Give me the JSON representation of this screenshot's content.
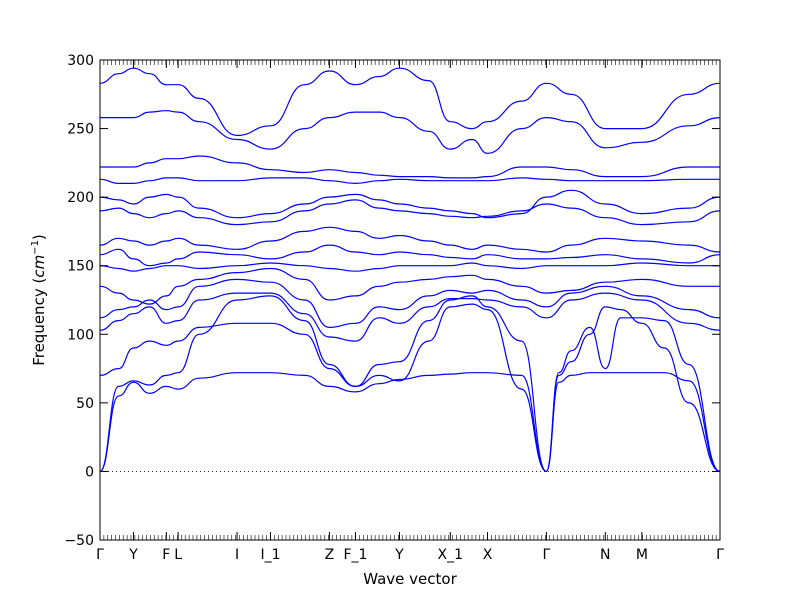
{
  "chart_data": {
    "type": "line",
    "title": "",
    "xlabel": "Wave vector",
    "ylabel": "Frequency",
    "ylabel_unit_math": "cm",
    "ylabel_unit_exponent": "−1",
    "ylim": [
      -50,
      300
    ],
    "yticks": [
      -50,
      0,
      50,
      100,
      150,
      200,
      250,
      300
    ],
    "ytick_labels": [
      "−50",
      "0",
      "50",
      "100",
      "150",
      "200",
      "250",
      "300"
    ],
    "xlim": [
      0,
      1
    ],
    "xticks": [
      {
        "label": "Γ",
        "x": 0.0
      },
      {
        "label": "Y",
        "x": 0.054
      },
      {
        "label": "F",
        "x": 0.107
      },
      {
        "label": "L",
        "x": 0.126
      },
      {
        "label": "I",
        "x": 0.221
      },
      {
        "label": "I_1",
        "x": 0.275
      },
      {
        "label": "Z",
        "x": 0.37
      },
      {
        "label": "F_1",
        "x": 0.412
      },
      {
        "label": "Y",
        "x": 0.483
      },
      {
        "label": "X_1",
        "x": 0.565
      },
      {
        "label": "X",
        "x": 0.625
      },
      {
        "label": "Γ",
        "x": 0.72
      },
      {
        "label": "N",
        "x": 0.815
      },
      {
        "label": "M",
        "x": 0.874
      },
      {
        "label": "Γ",
        "x": 1.0
      }
    ],
    "zero_line": {
      "y": 0,
      "style": "dotted"
    },
    "series_color": "#0000ff",
    "series": [
      {
        "x": [
          0,
          0.03,
          0.054,
          0.08,
          0.107,
          0.126,
          0.16,
          0.221,
          0.275,
          0.33,
          0.37,
          0.412,
          0.45,
          0.483,
          0.53,
          0.565,
          0.6,
          0.625,
          0.68,
          0.72
        ],
        "values": [
          0,
          55,
          65,
          57,
          62,
          60,
          68,
          72,
          72,
          70,
          62,
          58,
          64,
          67,
          70,
          71,
          72,
          72,
          70,
          0
        ]
      },
      {
        "x": [
          0,
          0.03,
          0.054,
          0.08,
          0.107,
          0.126,
          0.16,
          0.221,
          0.275,
          0.33,
          0.37,
          0.412,
          0.45,
          0.483,
          0.53,
          0.565,
          0.6,
          0.625,
          0.68,
          0.72
        ],
        "values": [
          0,
          62,
          66,
          63,
          70,
          72,
          100,
          125,
          128,
          110,
          78,
          62,
          70,
          66,
          95,
          120,
          122,
          118,
          60,
          0
        ]
      },
      {
        "x": [
          0,
          0.03,
          0.054,
          0.08,
          0.107,
          0.126,
          0.16,
          0.221,
          0.275,
          0.33,
          0.37,
          0.412,
          0.45,
          0.483,
          0.53,
          0.565,
          0.6,
          0.625,
          0.68,
          0.72
        ],
        "values": [
          70,
          75,
          90,
          95,
          92,
          95,
          105,
          108,
          108,
          100,
          75,
          62,
          78,
          80,
          110,
          125,
          128,
          120,
          95,
          0
        ]
      },
      {
        "x": [
          0.72,
          0.74,
          0.76,
          0.79,
          0.815,
          0.84,
          0.874,
          0.91,
          0.95,
          1.0
        ],
        "values": [
          0,
          70,
          80,
          100,
          120,
          118,
          108,
          90,
          50,
          0
        ]
      },
      {
        "x": [
          0.72,
          0.74,
          0.76,
          0.79,
          0.815,
          0.84,
          0.874,
          0.91,
          0.95,
          1.0
        ],
        "values": [
          0,
          65,
          70,
          72,
          72,
          72,
          72,
          72,
          66,
          0
        ]
      },
      {
        "x": [
          0.72,
          0.74,
          0.76,
          0.79,
          0.815,
          0.84,
          0.874,
          0.91,
          0.95,
          1.0
        ],
        "values": [
          0,
          72,
          88,
          105,
          75,
          112,
          112,
          110,
          78,
          0
        ]
      },
      {
        "x": [
          0,
          0.03,
          0.054,
          0.08,
          0.107,
          0.126,
          0.16,
          0.221,
          0.275,
          0.33,
          0.37,
          0.412,
          0.45,
          0.483,
          0.53,
          0.565,
          0.6,
          0.625,
          0.68,
          0.72,
          0.76,
          0.815,
          0.874,
          0.95,
          1.0
        ],
        "values": [
          103,
          110,
          115,
          120,
          108,
          110,
          125,
          130,
          130,
          115,
          98,
          95,
          112,
          108,
          120,
          126,
          126,
          125,
          120,
          112,
          125,
          130,
          125,
          108,
          103
        ]
      },
      {
        "x": [
          0,
          0.03,
          0.054,
          0.08,
          0.107,
          0.126,
          0.16,
          0.221,
          0.275,
          0.33,
          0.37,
          0.412,
          0.45,
          0.483,
          0.53,
          0.565,
          0.6,
          0.625,
          0.68,
          0.72,
          0.76,
          0.815,
          0.874,
          0.95,
          1.0
        ],
        "values": [
          112,
          118,
          120,
          125,
          118,
          120,
          135,
          140,
          138,
          125,
          105,
          108,
          120,
          118,
          128,
          132,
          130,
          132,
          125,
          120,
          130,
          135,
          128,
          118,
          112
        ]
      },
      {
        "x": [
          0,
          0.03,
          0.054,
          0.08,
          0.107,
          0.126,
          0.16,
          0.221,
          0.275,
          0.33,
          0.37,
          0.412,
          0.45,
          0.483,
          0.53,
          0.565,
          0.6,
          0.625,
          0.68,
          0.72,
          0.76,
          0.815,
          0.874,
          0.95,
          1.0
        ],
        "values": [
          135,
          130,
          125,
          122,
          128,
          135,
          140,
          145,
          148,
          140,
          125,
          128,
          135,
          138,
          140,
          142,
          143,
          140,
          135,
          130,
          132,
          138,
          140,
          135,
          135
        ]
      },
      {
        "x": [
          0,
          0.03,
          0.054,
          0.08,
          0.107,
          0.126,
          0.16,
          0.221,
          0.275,
          0.33,
          0.37,
          0.412,
          0.45,
          0.483,
          0.53,
          0.565,
          0.6,
          0.625,
          0.68,
          0.72,
          0.76,
          0.815,
          0.874,
          0.95,
          1.0
        ],
        "values": [
          150,
          148,
          146,
          148,
          150,
          150,
          148,
          150,
          152,
          150,
          148,
          146,
          148,
          150,
          150,
          150,
          152,
          150,
          148,
          150,
          150,
          150,
          152,
          150,
          150
        ]
      },
      {
        "x": [
          0,
          0.03,
          0.054,
          0.08,
          0.107,
          0.126,
          0.16,
          0.221,
          0.275,
          0.33,
          0.37,
          0.412,
          0.45,
          0.483,
          0.53,
          0.565,
          0.6,
          0.625,
          0.68,
          0.72,
          0.76,
          0.815,
          0.874,
          0.95,
          1.0
        ],
        "values": [
          158,
          162,
          155,
          150,
          152,
          155,
          160,
          158,
          155,
          160,
          165,
          160,
          158,
          160,
          158,
          156,
          155,
          158,
          155,
          155,
          156,
          158,
          155,
          152,
          158
        ]
      },
      {
        "x": [
          0,
          0.03,
          0.054,
          0.08,
          0.107,
          0.126,
          0.16,
          0.221,
          0.275,
          0.33,
          0.37,
          0.412,
          0.45,
          0.483,
          0.53,
          0.565,
          0.6,
          0.625,
          0.68,
          0.72,
          0.76,
          0.815,
          0.874,
          0.95,
          1.0
        ],
        "values": [
          165,
          170,
          168,
          165,
          168,
          170,
          165,
          162,
          168,
          175,
          178,
          175,
          170,
          172,
          168,
          165,
          162,
          165,
          162,
          160,
          165,
          170,
          168,
          165,
          160
        ]
      },
      {
        "x": [
          0,
          0.03,
          0.054,
          0.08,
          0.107,
          0.126,
          0.16,
          0.221,
          0.275,
          0.33,
          0.37,
          0.412,
          0.45,
          0.483,
          0.53,
          0.565,
          0.6,
          0.625,
          0.68,
          0.72,
          0.76,
          0.815,
          0.874,
          0.95,
          1.0
        ],
        "values": [
          190,
          192,
          188,
          185,
          188,
          190,
          185,
          180,
          182,
          190,
          195,
          198,
          192,
          190,
          188,
          186,
          185,
          186,
          190,
          195,
          192,
          185,
          180,
          182,
          190
        ]
      },
      {
        "x": [
          0,
          0.03,
          0.054,
          0.08,
          0.107,
          0.126,
          0.16,
          0.221,
          0.275,
          0.33,
          0.37,
          0.412,
          0.45,
          0.483,
          0.53,
          0.565,
          0.6,
          0.625,
          0.68,
          0.72,
          0.76,
          0.815,
          0.874,
          0.95,
          1.0
        ],
        "values": [
          200,
          198,
          195,
          200,
          202,
          200,
          192,
          185,
          188,
          195,
          200,
          202,
          198,
          195,
          192,
          190,
          188,
          185,
          188,
          200,
          205,
          195,
          188,
          192,
          200
        ]
      },
      {
        "x": [
          0,
          0.03,
          0.054,
          0.08,
          0.107,
          0.126,
          0.16,
          0.221,
          0.275,
          0.33,
          0.37,
          0.412,
          0.45,
          0.483,
          0.53,
          0.565,
          0.6,
          0.625,
          0.68,
          0.72,
          0.76,
          0.815,
          0.874,
          0.95,
          1.0
        ],
        "values": [
          213,
          210,
          210,
          212,
          214,
          214,
          212,
          212,
          214,
          214,
          212,
          210,
          212,
          213,
          212,
          212,
          212,
          212,
          214,
          213,
          212,
          212,
          212,
          213,
          213
        ]
      },
      {
        "x": [
          0,
          0.03,
          0.054,
          0.08,
          0.107,
          0.126,
          0.16,
          0.221,
          0.275,
          0.33,
          0.37,
          0.412,
          0.45,
          0.483,
          0.53,
          0.565,
          0.6,
          0.625,
          0.68,
          0.72,
          0.76,
          0.815,
          0.874,
          0.95,
          1.0
        ],
        "values": [
          222,
          222,
          222,
          225,
          228,
          228,
          230,
          225,
          220,
          218,
          220,
          218,
          216,
          215,
          215,
          214,
          214,
          215,
          222,
          222,
          220,
          215,
          215,
          222,
          222
        ]
      },
      {
        "x": [
          0,
          0.03,
          0.054,
          0.08,
          0.107,
          0.126,
          0.16,
          0.221,
          0.275,
          0.33,
          0.37,
          0.412,
          0.45,
          0.483,
          0.53,
          0.565,
          0.6,
          0.625,
          0.68,
          0.72,
          0.76,
          0.815,
          0.874,
          0.95,
          1.0
        ],
        "values": [
          258,
          258,
          258,
          262,
          263,
          262,
          255,
          242,
          235,
          250,
          258,
          262,
          262,
          258,
          248,
          235,
          242,
          232,
          250,
          258,
          255,
          236,
          240,
          252,
          258
        ]
      },
      {
        "x": [
          0,
          0.03,
          0.054,
          0.08,
          0.107,
          0.126,
          0.16,
          0.221,
          0.275,
          0.33,
          0.37,
          0.412,
          0.45,
          0.483,
          0.53,
          0.565,
          0.6,
          0.625,
          0.68,
          0.72,
          0.76,
          0.815,
          0.874,
          0.95,
          1.0
        ],
        "values": [
          283,
          290,
          294,
          290,
          282,
          282,
          272,
          245,
          252,
          282,
          292,
          282,
          288,
          294,
          285,
          255,
          250,
          255,
          270,
          283,
          275,
          250,
          250,
          275,
          283
        ]
      }
    ]
  }
}
